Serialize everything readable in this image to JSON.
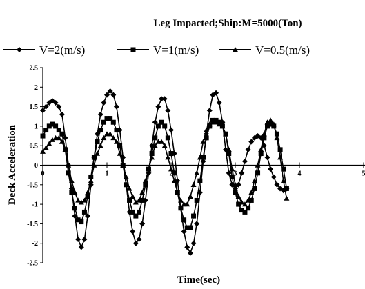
{
  "chart_data": {
    "type": "line",
    "title": "Leg Impacted;Ship:M=5000(Ton)",
    "xlabel": "Time(sec)",
    "ylabel": "Deck Acceleration",
    "xlim": [
      0,
      5
    ],
    "ylim": [
      -2.5,
      2.5
    ],
    "x_ticks": [
      "0",
      "1",
      "2",
      "3",
      "4",
      "5"
    ],
    "y_ticks": [
      "2.5",
      "2",
      "1.5",
      "1",
      "0.5",
      "0",
      "-0.5",
      "-1",
      "-1.5",
      "-2",
      "-2.5"
    ],
    "grid": false,
    "legend_position": "top",
    "series": [
      {
        "name": "V=2(m/s)",
        "marker": "diamond",
        "color": "#000000",
        "points": [
          [
            0.0,
            1.4
          ],
          [
            0.05,
            1.5
          ],
          [
            0.1,
            1.6
          ],
          [
            0.15,
            1.65
          ],
          [
            0.2,
            1.6
          ],
          [
            0.25,
            1.5
          ],
          [
            0.3,
            1.3
          ],
          [
            0.35,
            0.7
          ],
          [
            0.4,
            0.0
          ],
          [
            0.45,
            -0.6
          ],
          [
            0.5,
            -1.3
          ],
          [
            0.55,
            -1.9
          ],
          [
            0.6,
            -2.1
          ],
          [
            0.65,
            -1.9
          ],
          [
            0.7,
            -1.3
          ],
          [
            0.75,
            -0.5
          ],
          [
            0.8,
            0.2
          ],
          [
            0.85,
            0.8
          ],
          [
            0.9,
            1.3
          ],
          [
            0.95,
            1.6
          ],
          [
            1.0,
            1.8
          ],
          [
            1.05,
            1.9
          ],
          [
            1.1,
            1.8
          ],
          [
            1.15,
            1.5
          ],
          [
            1.2,
            0.9
          ],
          [
            1.25,
            0.2
          ],
          [
            1.3,
            -0.5
          ],
          [
            1.35,
            -1.2
          ],
          [
            1.4,
            -1.7
          ],
          [
            1.45,
            -2.0
          ],
          [
            1.5,
            -1.9
          ],
          [
            1.55,
            -1.5
          ],
          [
            1.6,
            -0.9
          ],
          [
            1.65,
            -0.2
          ],
          [
            1.7,
            0.5
          ],
          [
            1.75,
            1.1
          ],
          [
            1.8,
            1.5
          ],
          [
            1.85,
            1.7
          ],
          [
            1.9,
            1.7
          ],
          [
            1.95,
            1.4
          ],
          [
            2.0,
            0.9
          ],
          [
            2.05,
            0.3
          ],
          [
            2.1,
            -0.4
          ],
          [
            2.15,
            -1.1
          ],
          [
            2.2,
            -1.7
          ],
          [
            2.25,
            -2.1
          ],
          [
            2.3,
            -2.25
          ],
          [
            2.35,
            -2.0
          ],
          [
            2.4,
            -1.5
          ],
          [
            2.45,
            -0.7
          ],
          [
            2.5,
            0.1
          ],
          [
            2.55,
            0.8
          ],
          [
            2.6,
            1.4
          ],
          [
            2.65,
            1.8
          ],
          [
            2.7,
            1.85
          ],
          [
            2.75,
            1.6
          ],
          [
            2.8,
            1.1
          ],
          [
            2.85,
            0.4
          ],
          [
            2.9,
            -0.2
          ],
          [
            2.95,
            -0.5
          ],
          [
            3.0,
            -0.6
          ],
          [
            3.05,
            -0.5
          ],
          [
            3.1,
            -0.2
          ],
          [
            3.15,
            0.1
          ],
          [
            3.2,
            0.4
          ],
          [
            3.25,
            0.6
          ],
          [
            3.3,
            0.7
          ],
          [
            3.35,
            0.75
          ],
          [
            3.4,
            0.7
          ],
          [
            3.45,
            0.5
          ],
          [
            3.5,
            0.2
          ],
          [
            3.55,
            -0.1
          ],
          [
            3.6,
            -0.3
          ],
          [
            3.65,
            -0.5
          ],
          [
            3.7,
            -0.6
          ],
          [
            3.75,
            -0.65
          ],
          [
            3.8,
            -0.6
          ]
        ]
      },
      {
        "name": "V=1(m/s)",
        "marker": "square",
        "color": "#000000",
        "points": [
          [
            0.0,
            0.75
          ],
          [
            0.05,
            0.9
          ],
          [
            0.1,
            1.0
          ],
          [
            0.15,
            1.05
          ],
          [
            0.2,
            1.0
          ],
          [
            0.25,
            0.9
          ],
          [
            0.3,
            0.8
          ],
          [
            0.35,
            0.4
          ],
          [
            0.4,
            -0.2
          ],
          [
            0.45,
            -0.7
          ],
          [
            0.5,
            -1.1
          ],
          [
            0.55,
            -1.4
          ],
          [
            0.6,
            -1.45
          ],
          [
            0.65,
            -1.2
          ],
          [
            0.7,
            -0.8
          ],
          [
            0.75,
            -0.3
          ],
          [
            0.8,
            0.2
          ],
          [
            0.85,
            0.6
          ],
          [
            0.9,
            0.9
          ],
          [
            0.95,
            1.1
          ],
          [
            1.0,
            1.2
          ],
          [
            1.05,
            1.2
          ],
          [
            1.1,
            1.1
          ],
          [
            1.15,
            0.9
          ],
          [
            1.2,
            0.5
          ],
          [
            1.25,
            0.0
          ],
          [
            1.3,
            -0.5
          ],
          [
            1.35,
            -0.9
          ],
          [
            1.4,
            -1.2
          ],
          [
            1.45,
            -1.3
          ],
          [
            1.5,
            -1.2
          ],
          [
            1.55,
            -0.9
          ],
          [
            1.6,
            -0.5
          ],
          [
            1.65,
            -0.1
          ],
          [
            1.7,
            0.3
          ],
          [
            1.75,
            0.7
          ],
          [
            1.8,
            1.0
          ],
          [
            1.85,
            1.1
          ],
          [
            1.9,
            1.0
          ],
          [
            1.95,
            0.7
          ],
          [
            2.0,
            0.3
          ],
          [
            2.05,
            -0.2
          ],
          [
            2.1,
            -0.7
          ],
          [
            2.15,
            -1.1
          ],
          [
            2.2,
            -1.4
          ],
          [
            2.25,
            -1.6
          ],
          [
            2.3,
            -1.6
          ],
          [
            2.35,
            -1.3
          ],
          [
            2.4,
            -0.9
          ],
          [
            2.45,
            -0.4
          ],
          [
            2.5,
            0.2
          ],
          [
            2.55,
            0.7
          ],
          [
            2.6,
            1.0
          ],
          [
            2.65,
            1.15
          ],
          [
            2.7,
            1.15
          ],
          [
            2.75,
            1.1
          ],
          [
            2.8,
            1.0
          ],
          [
            2.85,
            0.8
          ],
          [
            2.9,
            0.3
          ],
          [
            2.95,
            -0.3
          ],
          [
            3.0,
            -0.7
          ],
          [
            3.05,
            -1.0
          ],
          [
            3.1,
            -1.15
          ],
          [
            3.15,
            -1.2
          ],
          [
            3.2,
            -1.1
          ],
          [
            3.25,
            -0.9
          ],
          [
            3.3,
            -0.6
          ],
          [
            3.35,
            -0.2
          ],
          [
            3.4,
            0.3
          ],
          [
            3.45,
            0.7
          ],
          [
            3.5,
            1.0
          ],
          [
            3.55,
            1.05
          ],
          [
            3.6,
            1.0
          ],
          [
            3.65,
            0.8
          ],
          [
            3.7,
            0.4
          ],
          [
            3.75,
            -0.1
          ],
          [
            3.8,
            -0.6
          ]
        ]
      },
      {
        "name": "V=0.5(m/s)",
        "marker": "triangle",
        "color": "#000000",
        "points": [
          [
            0.0,
            0.35
          ],
          [
            0.05,
            0.45
          ],
          [
            0.1,
            0.55
          ],
          [
            0.15,
            0.65
          ],
          [
            0.2,
            0.7
          ],
          [
            0.25,
            0.7
          ],
          [
            0.3,
            0.6
          ],
          [
            0.35,
            0.4
          ],
          [
            0.4,
            0.0
          ],
          [
            0.45,
            -0.4
          ],
          [
            0.5,
            -0.7
          ],
          [
            0.55,
            -0.9
          ],
          [
            0.6,
            -0.95
          ],
          [
            0.65,
            -0.9
          ],
          [
            0.7,
            -0.7
          ],
          [
            0.75,
            -0.4
          ],
          [
            0.8,
            0.0
          ],
          [
            0.85,
            0.3
          ],
          [
            0.9,
            0.5
          ],
          [
            0.95,
            0.7
          ],
          [
            1.0,
            0.8
          ],
          [
            1.05,
            0.8
          ],
          [
            1.1,
            0.7
          ],
          [
            1.15,
            0.6
          ],
          [
            1.2,
            0.3
          ],
          [
            1.25,
            0.0
          ],
          [
            1.3,
            -0.3
          ],
          [
            1.35,
            -0.6
          ],
          [
            1.4,
            -0.8
          ],
          [
            1.45,
            -0.95
          ],
          [
            1.5,
            -0.9
          ],
          [
            1.55,
            -0.7
          ],
          [
            1.6,
            -0.4
          ],
          [
            1.65,
            -0.1
          ],
          [
            1.7,
            0.2
          ],
          [
            1.75,
            0.5
          ],
          [
            1.8,
            0.6
          ],
          [
            1.85,
            0.6
          ],
          [
            1.9,
            0.5
          ],
          [
            1.95,
            0.2
          ],
          [
            2.0,
            -0.1
          ],
          [
            2.05,
            -0.4
          ],
          [
            2.1,
            -0.7
          ],
          [
            2.15,
            -0.9
          ],
          [
            2.2,
            -1.0
          ],
          [
            2.25,
            -1.0
          ],
          [
            2.3,
            -0.8
          ],
          [
            2.35,
            -0.5
          ],
          [
            2.4,
            -0.2
          ],
          [
            2.45,
            0.2
          ],
          [
            2.5,
            0.6
          ],
          [
            2.55,
            0.9
          ],
          [
            2.6,
            1.05
          ],
          [
            2.65,
            1.1
          ],
          [
            2.7,
            1.1
          ],
          [
            2.75,
            1.05
          ],
          [
            2.8,
            1.0
          ],
          [
            2.85,
            0.8
          ],
          [
            2.9,
            0.4
          ],
          [
            2.95,
            -0.1
          ],
          [
            3.0,
            -0.5
          ],
          [
            3.05,
            -0.8
          ],
          [
            3.1,
            -0.95
          ],
          [
            3.15,
            -1.0
          ],
          [
            3.2,
            -0.9
          ],
          [
            3.25,
            -0.7
          ],
          [
            3.3,
            -0.4
          ],
          [
            3.35,
            0.0
          ],
          [
            3.4,
            0.4
          ],
          [
            3.45,
            0.8
          ],
          [
            3.5,
            1.1
          ],
          [
            3.55,
            1.15
          ],
          [
            3.6,
            1.05
          ],
          [
            3.65,
            0.7
          ],
          [
            3.7,
            0.2
          ],
          [
            3.75,
            -0.4
          ],
          [
            3.8,
            -0.85
          ]
        ]
      }
    ]
  }
}
